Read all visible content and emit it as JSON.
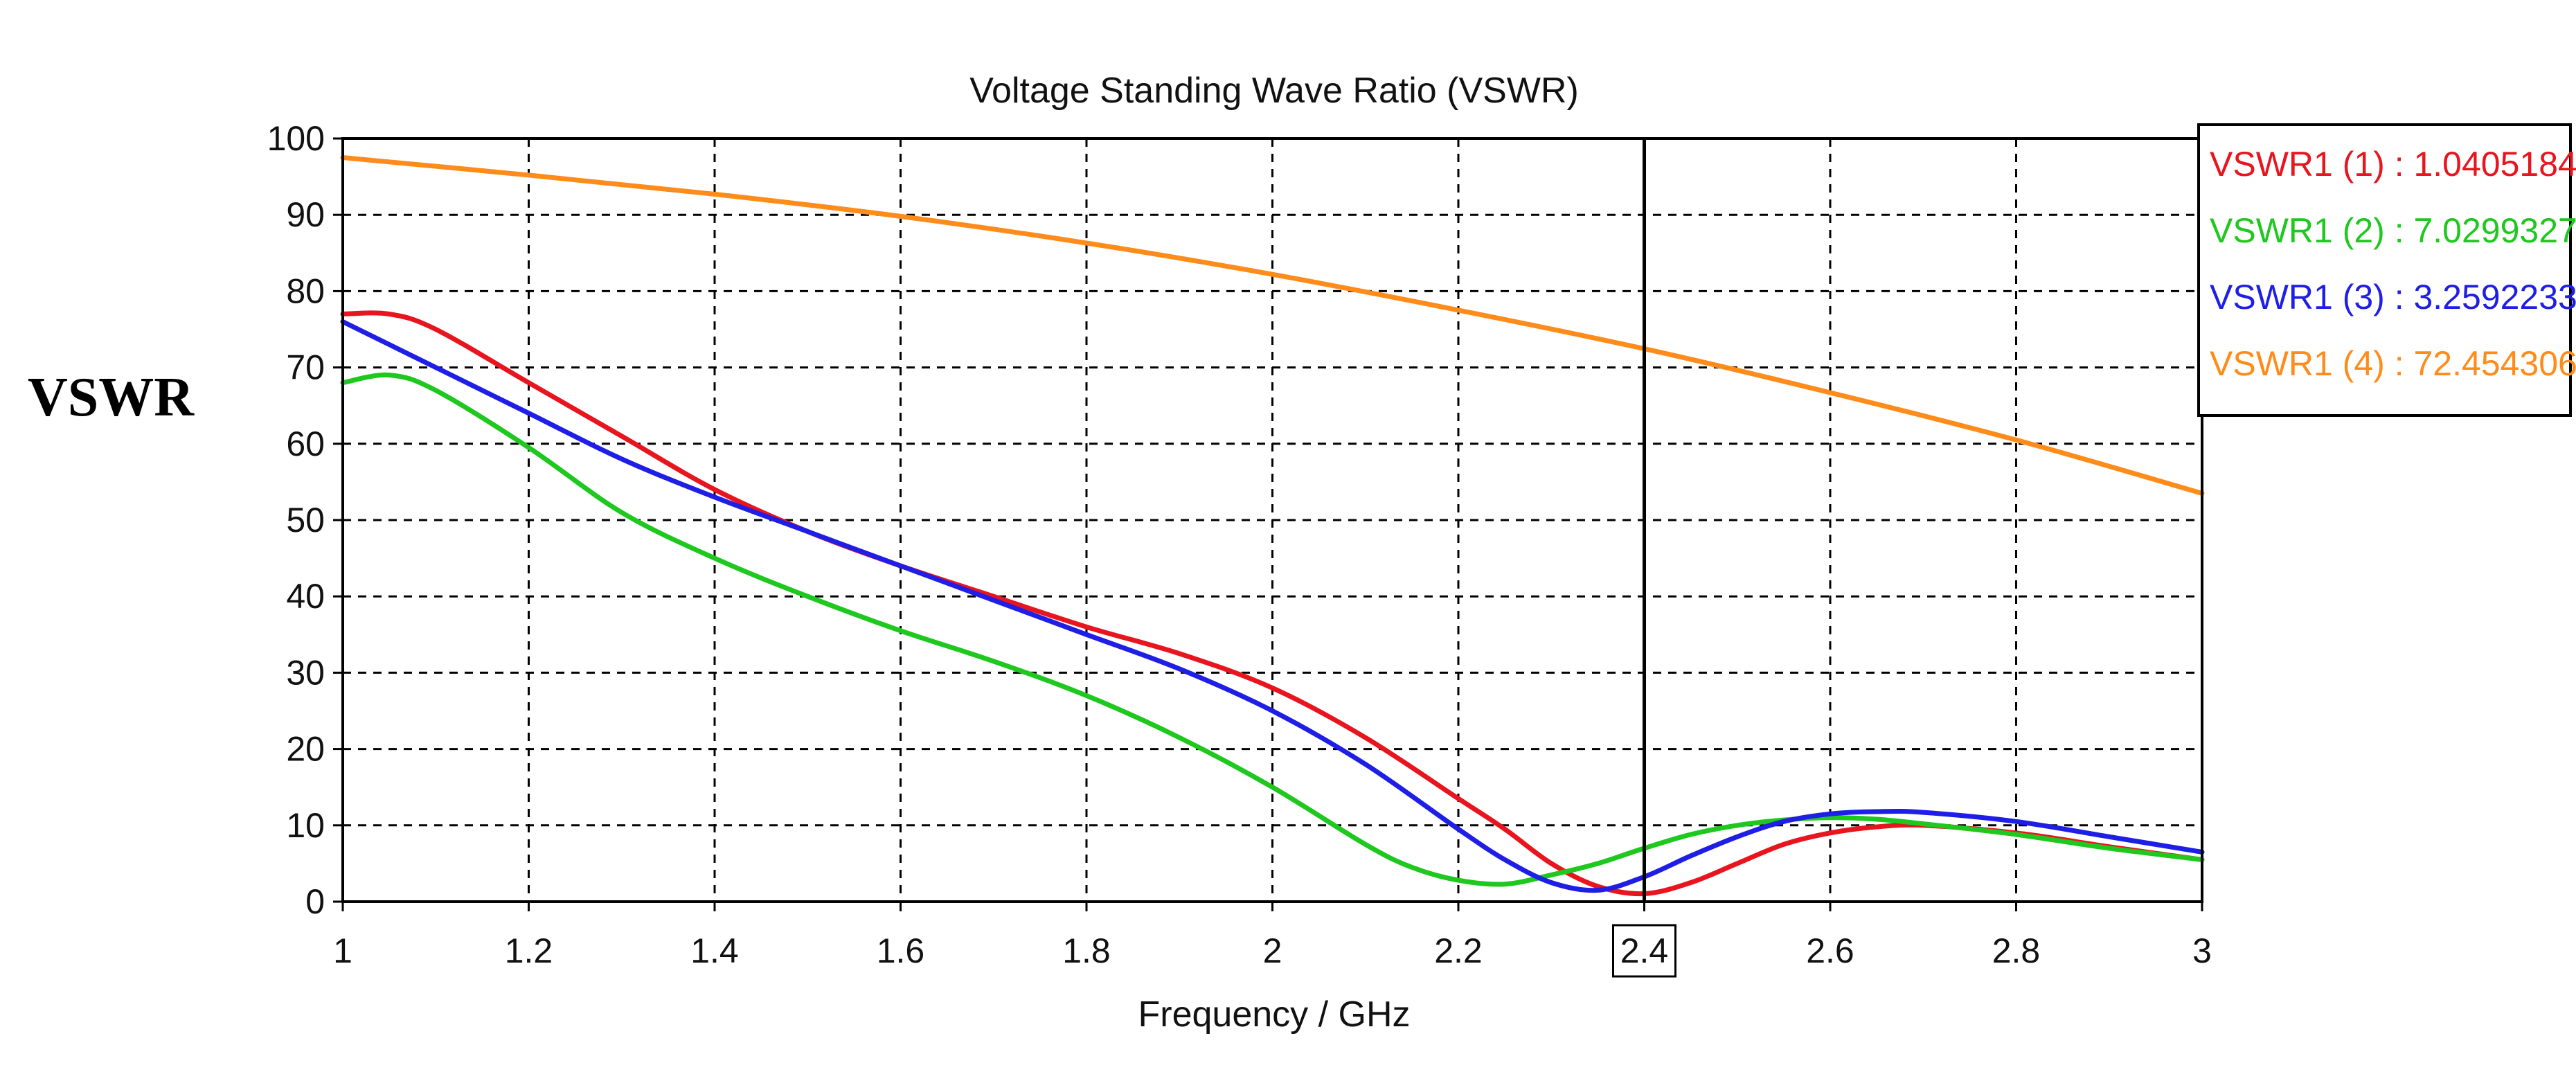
{
  "page_ylabel": "VSWR",
  "chart_data": {
    "type": "line",
    "title": "Voltage Standing Wave Ratio (VSWR)",
    "xlabel": "Frequency / GHz",
    "ylabel": "VSWR",
    "xlim": [
      1,
      3
    ],
    "ylim": [
      0,
      100
    ],
    "xticks": [
      1,
      1.2,
      1.4,
      1.6,
      1.8,
      2,
      2.2,
      2.4,
      2.6,
      2.8,
      3
    ],
    "xtick_labels": [
      "1",
      "1.2",
      "1.4",
      "1.6",
      "1.8",
      "2",
      "2.2",
      "2.4",
      "2.6",
      "2.8",
      "3"
    ],
    "yticks": [
      0,
      10,
      20,
      30,
      40,
      50,
      60,
      70,
      80,
      90,
      100
    ],
    "ytick_labels": [
      "0",
      "10",
      "20",
      "30",
      "40",
      "50",
      "60",
      "70",
      "80",
      "90",
      "100"
    ],
    "grid": true,
    "marker": {
      "x": 2.4,
      "label": "2.4"
    },
    "legend_position": "top-right",
    "series": [
      {
        "name": "VSWR1 (1)",
        "legend": "VSWR1 (1) : 1.0405184",
        "color": "#e8141e",
        "x": [
          1.0,
          1.05,
          1.1,
          1.2,
          1.3,
          1.4,
          1.5,
          1.6,
          1.7,
          1.8,
          1.9,
          2.0,
          2.1,
          2.2,
          2.25,
          2.3,
          2.35,
          2.4,
          2.45,
          2.5,
          2.55,
          2.6,
          2.65,
          2.7,
          2.8,
          2.9,
          3.0
        ],
        "y": [
          77,
          77,
          75,
          68,
          61,
          54,
          48.5,
          44,
          40,
          36,
          32.5,
          28,
          21.5,
          13.5,
          9.5,
          5,
          2,
          1.04,
          2.5,
          5,
          7.5,
          9,
          9.8,
          10,
          9,
          7.2,
          5.5
        ]
      },
      {
        "name": "VSWR1 (2)",
        "legend": "VSWR1 (2) : 7.0299327",
        "color": "#1ec81e",
        "x": [
          1.0,
          1.05,
          1.1,
          1.2,
          1.3,
          1.4,
          1.5,
          1.6,
          1.7,
          1.8,
          1.9,
          2.0,
          2.1,
          2.15,
          2.2,
          2.25,
          2.3,
          2.35,
          2.4,
          2.45,
          2.5,
          2.55,
          2.6,
          2.65,
          2.7,
          2.8,
          2.9,
          3.0
        ],
        "y": [
          68,
          69,
          67,
          59.5,
          51,
          45,
          40,
          35.5,
          31.5,
          27,
          21.5,
          15,
          7.5,
          4.5,
          2.8,
          2.3,
          3.5,
          5,
          7,
          8.8,
          10,
          10.7,
          11,
          10.8,
          10.2,
          8.8,
          7,
          5.5
        ]
      },
      {
        "name": "VSWR1 (3)",
        "legend": "VSWR1 (3) : 3.2592233",
        "color": "#1e1ee6",
        "x": [
          1.0,
          1.05,
          1.1,
          1.2,
          1.3,
          1.4,
          1.5,
          1.6,
          1.7,
          1.8,
          1.9,
          2.0,
          2.1,
          2.2,
          2.25,
          2.3,
          2.35,
          2.4,
          2.45,
          2.5,
          2.55,
          2.6,
          2.65,
          2.7,
          2.8,
          2.9,
          3.0
        ],
        "y": [
          76,
          73,
          70,
          64,
          58,
          53,
          48.5,
          44,
          39.5,
          35,
          30.5,
          25,
          18,
          9.5,
          5.5,
          2.5,
          1.5,
          3.26,
          6,
          8.5,
          10.5,
          11.5,
          11.8,
          11.7,
          10.5,
          8.5,
          6.5
        ]
      },
      {
        "name": "VSWR1 (4)",
        "legend": "VSWR1 (4) : 72.454306",
        "color": "#ff8c1a",
        "x": [
          1.0,
          1.2,
          1.4,
          1.6,
          1.8,
          2.0,
          2.2,
          2.4,
          2.6,
          2.8,
          3.0
        ],
        "y": [
          97.5,
          95.2,
          92.7,
          89.8,
          86.3,
          82.2,
          77.5,
          72.45,
          66.7,
          60.5,
          53.5
        ]
      }
    ]
  }
}
